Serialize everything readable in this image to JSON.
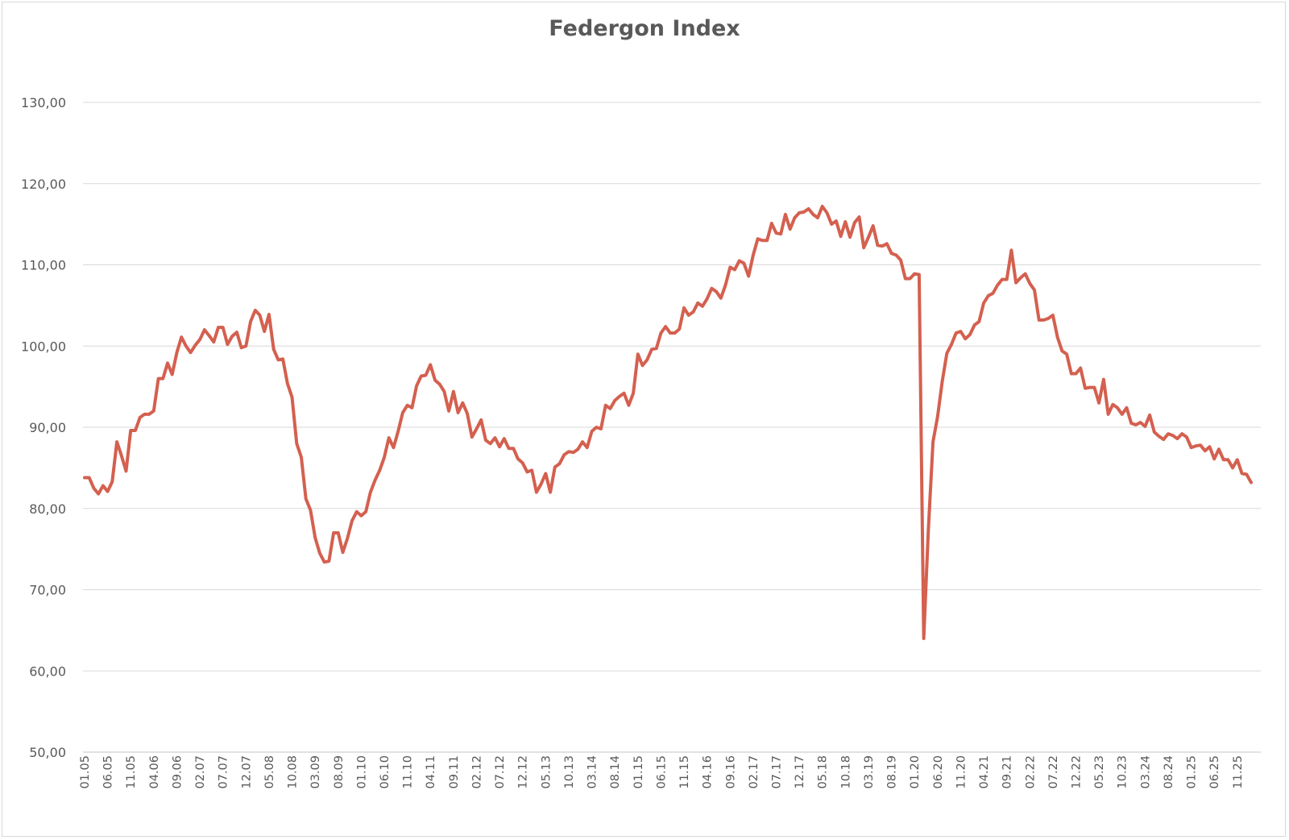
{
  "chart_data": {
    "type": "line",
    "title": "Federgon Index",
    "xlabel": "",
    "ylabel": "",
    "ylim": [
      50,
      130
    ],
    "yticks": [
      "130,00",
      "120,00",
      "110,00",
      "100,00",
      "90,00",
      "80,00",
      "70,00",
      "60,00",
      "50,00"
    ],
    "xticks": [
      "01.05",
      "06.05",
      "11.05",
      "04.06",
      "09.06",
      "02.07",
      "07.07",
      "12.07",
      "05.08",
      "10.08",
      "03.09",
      "08.09",
      "01.10",
      "06.10",
      "11.10",
      "04.11",
      "09.11",
      "02.12",
      "07.12",
      "12.12",
      "05.13",
      "10.13",
      "03.14",
      "08.14",
      "01.15",
      "06.15",
      "11.15",
      "04.16",
      "09.16",
      "02.17",
      "07.17",
      "12.17",
      "05.18",
      "10.18",
      "03.19",
      "08.19",
      "01.20",
      "06.20",
      "11.20",
      "04.21",
      "09.21",
      "02.22",
      "07.22",
      "12.22",
      "05.23",
      "10.23",
      "03.24",
      "08.24",
      "01.25",
      "06.25",
      "11.25"
    ],
    "grid": true,
    "legend": "none",
    "colors": {
      "line": "#d4604f",
      "grid": "#d9d9d9",
      "text": "#595959"
    },
    "series": [
      {
        "name": "",
        "x_start": "2005-01",
        "frequency": "monthly",
        "values": [
          83.8,
          83.8,
          82.5,
          81.8,
          82.8,
          82.1,
          83.3,
          88.2,
          86.5,
          84.6,
          89.6,
          89.6,
          91.2,
          91.6,
          91.6,
          92.0,
          96.0,
          96.0,
          97.9,
          96.5,
          99.2,
          101.1,
          100.0,
          99.2,
          100.1,
          100.8,
          102.0,
          101.3,
          100.5,
          102.3,
          102.3,
          100.2,
          101.2,
          101.7,
          99.8,
          100.0,
          103.0,
          104.4,
          103.8,
          101.8,
          103.9,
          99.6,
          98.3,
          98.4,
          95.4,
          93.7,
          88.0,
          86.3,
          81.2,
          79.8,
          76.4,
          74.5,
          73.4,
          73.5,
          77.0,
          77.0,
          74.6,
          76.3,
          78.5,
          79.6,
          79.1,
          79.6,
          82.0,
          83.5,
          84.7,
          86.3,
          88.7,
          87.5,
          89.5,
          91.8,
          92.7,
          92.4,
          95.1,
          96.3,
          96.4,
          97.7,
          95.8,
          95.3,
          94.4,
          92.0,
          94.4,
          91.8,
          93.0,
          91.7,
          88.8,
          89.8,
          90.9,
          88.4,
          88.0,
          88.7,
          87.6,
          88.6,
          87.4,
          87.4,
          86.1,
          85.6,
          84.5,
          84.7,
          82.0,
          83.0,
          84.3,
          82.0,
          85.1,
          85.5,
          86.6,
          87.0,
          86.9,
          87.3,
          88.2,
          87.5,
          89.5,
          90.0,
          89.8,
          92.7,
          92.3,
          93.3,
          93.8,
          94.2,
          92.7,
          94.2,
          99.0,
          97.6,
          98.3,
          99.6,
          99.7,
          101.6,
          102.4,
          101.6,
          101.6,
          102.1,
          104.7,
          103.8,
          104.2,
          105.3,
          104.9,
          105.8,
          107.1,
          106.7,
          105.9,
          107.5,
          109.7,
          109.4,
          110.5,
          110.2,
          108.6,
          111.2,
          113.2,
          113.0,
          113.0,
          115.1,
          113.9,
          113.8,
          116.2,
          114.4,
          115.8,
          116.4,
          116.5,
          116.9,
          116.2,
          115.8,
          117.2,
          116.4,
          115.0,
          115.4,
          113.5,
          115.3,
          113.4,
          115.2,
          115.9,
          112.1,
          113.4,
          114.8,
          112.4,
          112.3,
          112.6,
          111.4,
          111.2,
          110.6,
          108.3,
          108.3,
          108.9,
          108.8,
          64.0,
          77.5,
          88.2,
          91.3,
          95.6,
          99.1,
          100.2,
          101.6,
          101.8,
          100.9,
          101.4,
          102.6,
          103.0,
          105.3,
          106.2,
          106.5,
          107.5,
          108.2,
          108.2,
          111.8,
          107.8,
          108.4,
          108.9,
          107.7,
          106.9,
          103.2,
          103.2,
          103.4,
          103.8,
          101.1,
          99.4,
          99.0,
          96.6,
          96.6,
          97.3,
          94.8,
          94.9,
          94.9,
          93.0,
          95.9,
          91.6,
          92.8,
          92.4,
          91.6,
          92.4,
          90.5,
          90.3,
          90.6,
          90.1,
          91.5,
          89.4,
          88.9,
          88.5,
          89.2,
          89.0,
          88.6,
          89.2,
          88.8,
          87.5,
          87.7,
          87.8,
          87.1,
          87.6,
          86.1,
          87.3,
          86.0,
          86.0,
          85.0,
          86.0,
          84.3,
          84.2,
          83.2
        ]
      }
    ]
  }
}
